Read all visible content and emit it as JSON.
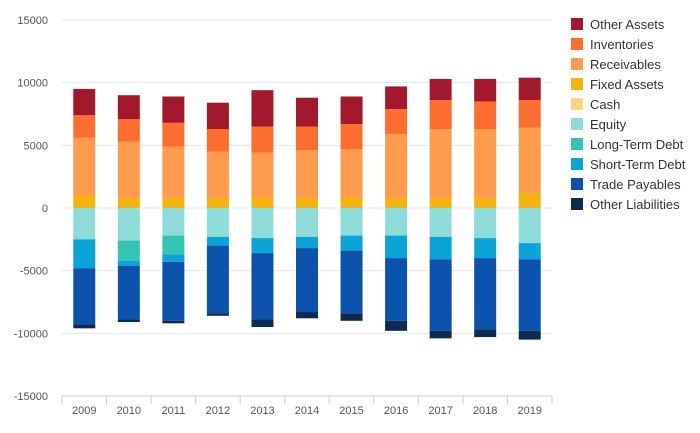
{
  "chart_data": {
    "type": "bar",
    "stacked": true,
    "categories": [
      "2009",
      "2010",
      "2011",
      "2012",
      "2013",
      "2014",
      "2015",
      "2016",
      "2017",
      "2018",
      "2019"
    ],
    "ylim": [
      -15000,
      15000
    ],
    "yticks": [
      15000,
      10000,
      5000,
      0,
      -5000,
      -10000,
      -15000
    ],
    "grid": true,
    "legend_position": "right",
    "positive_series": [
      {
        "name": "Fixed Assets",
        "color": "#f5b30f",
        "values": [
          1000,
          800,
          800,
          800,
          800,
          800,
          800,
          800,
          800,
          800,
          1200
        ]
      },
      {
        "name": "Receivables",
        "color": "#fe9b4c",
        "values": [
          4600,
          4500,
          4100,
          3700,
          3600,
          3800,
          3900,
          5100,
          5500,
          5500,
          5200
        ]
      },
      {
        "name": "Inventories",
        "color": "#fd6d2f",
        "values": [
          1800,
          1800,
          1900,
          1800,
          2100,
          1900,
          2000,
          2000,
          2300,
          2200,
          2200
        ]
      },
      {
        "name": "Other Assets",
        "color": "#a2192d",
        "values": [
          2100,
          1900,
          2100,
          2100,
          2900,
          2300,
          2200,
          1800,
          1700,
          1800,
          1800
        ]
      }
    ],
    "negative_series": [
      {
        "name": "Equity",
        "color": "#8edcd7",
        "values": [
          -2500,
          -2600,
          -2200,
          -2300,
          -2400,
          -2300,
          -2200,
          -2200,
          -2300,
          -2400,
          -2800
        ]
      },
      {
        "name": "Long-Term Debt",
        "color": "#35c4b4",
        "values": [
          0,
          -1600,
          -1500,
          0,
          0,
          0,
          0,
          0,
          0,
          0,
          0
        ]
      },
      {
        "name": "Short-Term Debt",
        "color": "#0aa5d6",
        "values": [
          -2300,
          -400,
          -600,
          -700,
          -1200,
          -900,
          -1200,
          -1800,
          -1800,
          -1600,
          -1300
        ]
      },
      {
        "name": "Trade Payables",
        "color": "#0b52ad",
        "values": [
          -4500,
          -4300,
          -4700,
          -5400,
          -5300,
          -5100,
          -5000,
          -5000,
          -5700,
          -5700,
          -5700
        ]
      },
      {
        "name": "Other Liabilities",
        "color": "#0c2a52",
        "values": [
          -300,
          -200,
          -200,
          -200,
          -600,
          -500,
          -600,
          -800,
          -600,
          -600,
          -700
        ]
      }
    ],
    "legend": [
      {
        "name": "Other Assets",
        "color": "#a2192d"
      },
      {
        "name": "Inventories",
        "color": "#fd6d2f"
      },
      {
        "name": "Receivables",
        "color": "#fe9b4c"
      },
      {
        "name": "Fixed Assets",
        "color": "#f5b30f"
      },
      {
        "name": "Cash",
        "color": "#fdd583"
      },
      {
        "name": "Equity",
        "color": "#8edcd7"
      },
      {
        "name": "Long-Term Debt",
        "color": "#35c4b4"
      },
      {
        "name": "Short-Term Debt",
        "color": "#0aa5d6"
      },
      {
        "name": "Trade Payables",
        "color": "#0b52ad"
      },
      {
        "name": "Other Liabilities",
        "color": "#0c2a52"
      }
    ]
  }
}
